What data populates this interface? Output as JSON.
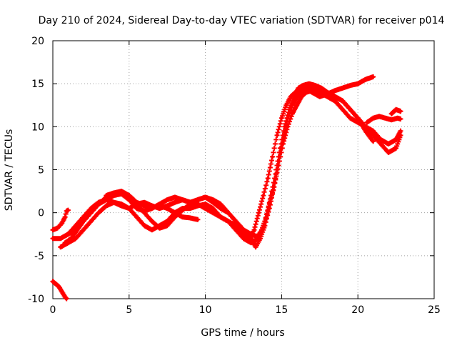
{
  "chart_data": {
    "type": "scatter",
    "title": "Day 210 of 2024, Sidereal Day-to-day VTEC variation (SDTVAR) for receiver p014",
    "xlabel": "GPS time / hours",
    "ylabel": "SDTVAR / TECUs",
    "xlim": [
      0,
      25
    ],
    "ylim": [
      -10,
      20
    ],
    "xticks": [
      0,
      5,
      10,
      15,
      20,
      25
    ],
    "yticks": [
      -10,
      -5,
      0,
      5,
      10,
      15,
      20
    ],
    "x_tick_labels": [
      "0",
      "5",
      "10",
      "15",
      "20",
      "25"
    ],
    "y_tick_labels": [
      "-10",
      "-5",
      "0",
      "5",
      "10",
      "15",
      "20"
    ],
    "grid": true,
    "legend": "none",
    "marker": "plus",
    "color": "#ff0000",
    "series": [
      {
        "x": [
          0.0,
          0.2,
          0.4,
          0.6,
          0.8,
          0.9
        ],
        "y": [
          -8.0,
          -8.3,
          -8.6,
          -9.2,
          -9.8,
          -10.0
        ]
      },
      {
        "x": [
          0.0,
          0.3,
          0.6,
          0.8,
          0.9,
          1.0
        ],
        "y": [
          -2.0,
          -1.8,
          -1.2,
          -0.5,
          0.2,
          0.3
        ]
      },
      {
        "x": [
          0.0,
          0.5,
          1.0,
          1.5,
          2.0,
          2.5,
          3.0,
          3.5,
          4.0,
          4.5,
          5.0,
          5.5,
          6.0,
          6.5,
          7.0,
          7.5,
          8.0,
          8.5,
          9.0,
          9.5
        ],
        "y": [
          -3.0,
          -3.0,
          -2.5,
          -2.0,
          -1.0,
          0.0,
          1.0,
          1.5,
          2.0,
          2.2,
          2.0,
          1.2,
          0.8,
          0.6,
          0.8,
          0.5,
          0.0,
          -0.5,
          -0.6,
          -0.8
        ]
      },
      {
        "x": [
          0.5,
          1.0,
          1.5,
          2.0,
          2.5,
          3.0,
          3.5,
          4.0,
          4.5,
          5.0,
          5.5,
          6.0,
          6.5,
          7.0,
          7.5,
          8.0,
          8.5,
          9.0,
          9.5,
          10.0,
          10.5,
          11.0,
          11.5,
          12.0,
          12.5,
          13.0,
          13.3,
          13.6,
          13.9,
          14.2,
          14.5,
          14.8,
          15.1,
          15.4,
          15.7,
          16.0,
          16.3,
          16.6,
          17.0,
          17.5,
          18.0,
          18.5,
          19.0,
          19.5,
          20.0,
          20.5,
          21.0
        ],
        "y": [
          -4.0,
          -3.5,
          -3.0,
          -2.0,
          -1.0,
          0.0,
          0.8,
          1.2,
          1.0,
          0.5,
          -0.5,
          -1.5,
          -2.0,
          -1.5,
          -1.0,
          0.0,
          0.5,
          0.5,
          0.8,
          1.0,
          0.5,
          -0.5,
          -1.0,
          -2.0,
          -3.0,
          -3.5,
          -3.2,
          -2.5,
          -1.0,
          1.0,
          3.0,
          6.0,
          8.5,
          11.0,
          12.5,
          13.5,
          14.0,
          14.5,
          14.6,
          14.2,
          13.8,
          13.5,
          13.0,
          12.0,
          11.0,
          9.5,
          8.3
        ]
      },
      {
        "x": [
          0.8,
          1.2,
          1.6,
          2.0,
          2.5,
          3.0,
          3.5,
          4.0,
          4.5,
          5.0,
          5.5,
          6.0,
          6.5,
          7.0,
          7.5,
          8.0,
          8.5,
          9.0,
          9.5,
          10.0,
          10.5,
          11.0,
          11.5,
          12.0,
          12.5,
          13.0,
          13.4,
          13.7,
          14.0,
          14.3,
          14.6,
          14.9,
          15.2,
          15.5,
          15.8,
          16.1,
          16.4,
          16.8,
          17.2,
          17.6,
          18.0,
          18.5,
          19.0,
          19.5,
          20.0,
          20.5,
          21.0,
          21.5,
          22.0,
          22.5,
          22.8
        ],
        "y": [
          -3.5,
          -3.0,
          -2.0,
          -1.0,
          0.0,
          1.0,
          1.8,
          2.3,
          2.5,
          2.0,
          1.0,
          0.0,
          -1.0,
          -1.8,
          -1.5,
          -0.5,
          0.3,
          1.0,
          1.5,
          1.8,
          1.2,
          0.5,
          0.0,
          -1.0,
          -2.0,
          -2.5,
          -2.8,
          -2.0,
          -0.5,
          2.0,
          4.5,
          7.5,
          10.0,
          12.0,
          13.5,
          14.5,
          14.8,
          15.0,
          14.8,
          14.5,
          14.0,
          13.5,
          13.0,
          12.0,
          11.0,
          10.0,
          9.0,
          8.0,
          7.0,
          7.5,
          9.0
        ]
      },
      {
        "x": [
          1.0,
          1.5,
          2.0,
          2.5,
          3.0,
          3.5,
          4.0,
          4.5,
          5.0,
          5.5,
          6.0,
          6.5,
          7.0,
          7.5,
          8.0,
          8.5,
          9.0,
          9.5,
          10.0,
          10.5,
          11.0,
          11.5,
          12.0,
          12.5,
          12.9,
          13.2,
          13.5,
          13.8,
          14.1,
          14.4,
          14.7,
          15.0,
          15.3,
          15.6,
          15.9,
          16.2,
          16.5,
          17.0,
          17.5,
          18.0,
          18.5,
          19.0,
          19.5,
          20.0,
          20.5,
          21.0
        ],
        "y": [
          -2.5,
          -1.5,
          -0.5,
          0.5,
          1.2,
          1.5,
          1.2,
          0.8,
          0.5,
          1.0,
          1.2,
          0.8,
          0.5,
          0.8,
          1.2,
          1.5,
          1.2,
          1.0,
          0.5,
          0.0,
          -0.5,
          -1.0,
          -1.5,
          -2.5,
          -3.0,
          -2.0,
          0.0,
          2.0,
          4.0,
          6.5,
          9.0,
          11.0,
          12.5,
          13.5,
          14.0,
          14.2,
          14.5,
          14.0,
          13.5,
          13.8,
          14.2,
          14.5,
          14.8,
          15.0,
          15.5,
          15.8
        ]
      },
      {
        "x": [
          3.5,
          4.0,
          4.5,
          5.0,
          5.5,
          6.0,
          6.5,
          7.0,
          7.5,
          8.0,
          8.5,
          9.0,
          9.5,
          10.0,
          10.5,
          11.0,
          11.5,
          12.0,
          12.5,
          13.0,
          13.3,
          13.6,
          13.9,
          14.2,
          14.5,
          14.8,
          15.1,
          15.4,
          15.7,
          16.0,
          16.3,
          16.6,
          17.0,
          17.5,
          18.0,
          18.5,
          19.0,
          19.5,
          20.0,
          20.5,
          21.0,
          21.5,
          22.0,
          22.5,
          22.8
        ],
        "y": [
          2.0,
          2.3,
          2.2,
          1.5,
          0.5,
          0.2,
          0.5,
          1.0,
          1.5,
          1.8,
          1.5,
          1.2,
          1.5,
          1.8,
          1.5,
          1.0,
          0.0,
          -1.0,
          -2.0,
          -3.0,
          -4.0,
          -3.0,
          -1.5,
          0.5,
          3.0,
          5.5,
          8.0,
          10.0,
          11.5,
          12.5,
          13.5,
          14.0,
          14.2,
          14.0,
          13.5,
          13.0,
          12.0,
          11.0,
          10.5,
          10.0,
          9.5,
          8.5,
          8.0,
          8.5,
          9.5
        ]
      },
      {
        "x": [
          20.6,
          21.0,
          21.4,
          21.8,
          22.2,
          22.6,
          22.8
        ],
        "y": [
          10.5,
          11.0,
          11.2,
          11.0,
          10.8,
          11.0,
          10.9
        ]
      },
      {
        "x": [
          22.2,
          22.5,
          22.8
        ],
        "y": [
          11.5,
          12.0,
          11.8
        ]
      }
    ]
  }
}
